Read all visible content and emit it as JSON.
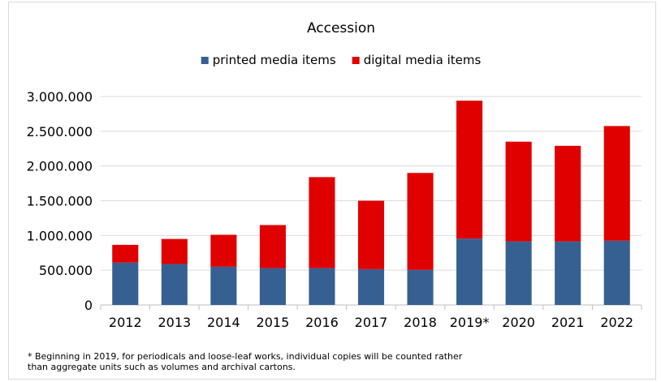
{
  "chart_data": {
    "type": "bar",
    "stacked": true,
    "title": "Accession",
    "xlabel": "",
    "ylabel": "",
    "categories": [
      "2012",
      "2013",
      "2014",
      "2015",
      "2016",
      "2017",
      "2018",
      "2019*",
      "2020",
      "2021",
      "2022"
    ],
    "series": [
      {
        "name": "printed media items",
        "color": "#376092",
        "values": [
          610000,
          590000,
          550000,
          530000,
          530000,
          515000,
          505000,
          955000,
          915000,
          915000,
          925000
        ]
      },
      {
        "name": "digital media items",
        "color": "#e00000",
        "values": [
          255000,
          360000,
          460000,
          620000,
          1310000,
          985000,
          1395000,
          1985000,
          1435000,
          1375000,
          1650000
        ]
      }
    ],
    "ylim": [
      0,
      3000000
    ],
    "yticks": [
      "0",
      "500.000",
      "1.000.000",
      "1.500.000",
      "2.000.000",
      "2.500.000",
      "3.000.000"
    ],
    "ytick_values": [
      0,
      500000,
      1000000,
      1500000,
      2000000,
      2500000,
      3000000
    ],
    "grid": "horizontal",
    "legend": "top-center"
  },
  "footnote": {
    "line1": "* Beginning in 2019, for periodicals and loose-leaf works, individual copies will be counted rather",
    "line2": "than aggregate units such as volumes and archival cartons."
  }
}
